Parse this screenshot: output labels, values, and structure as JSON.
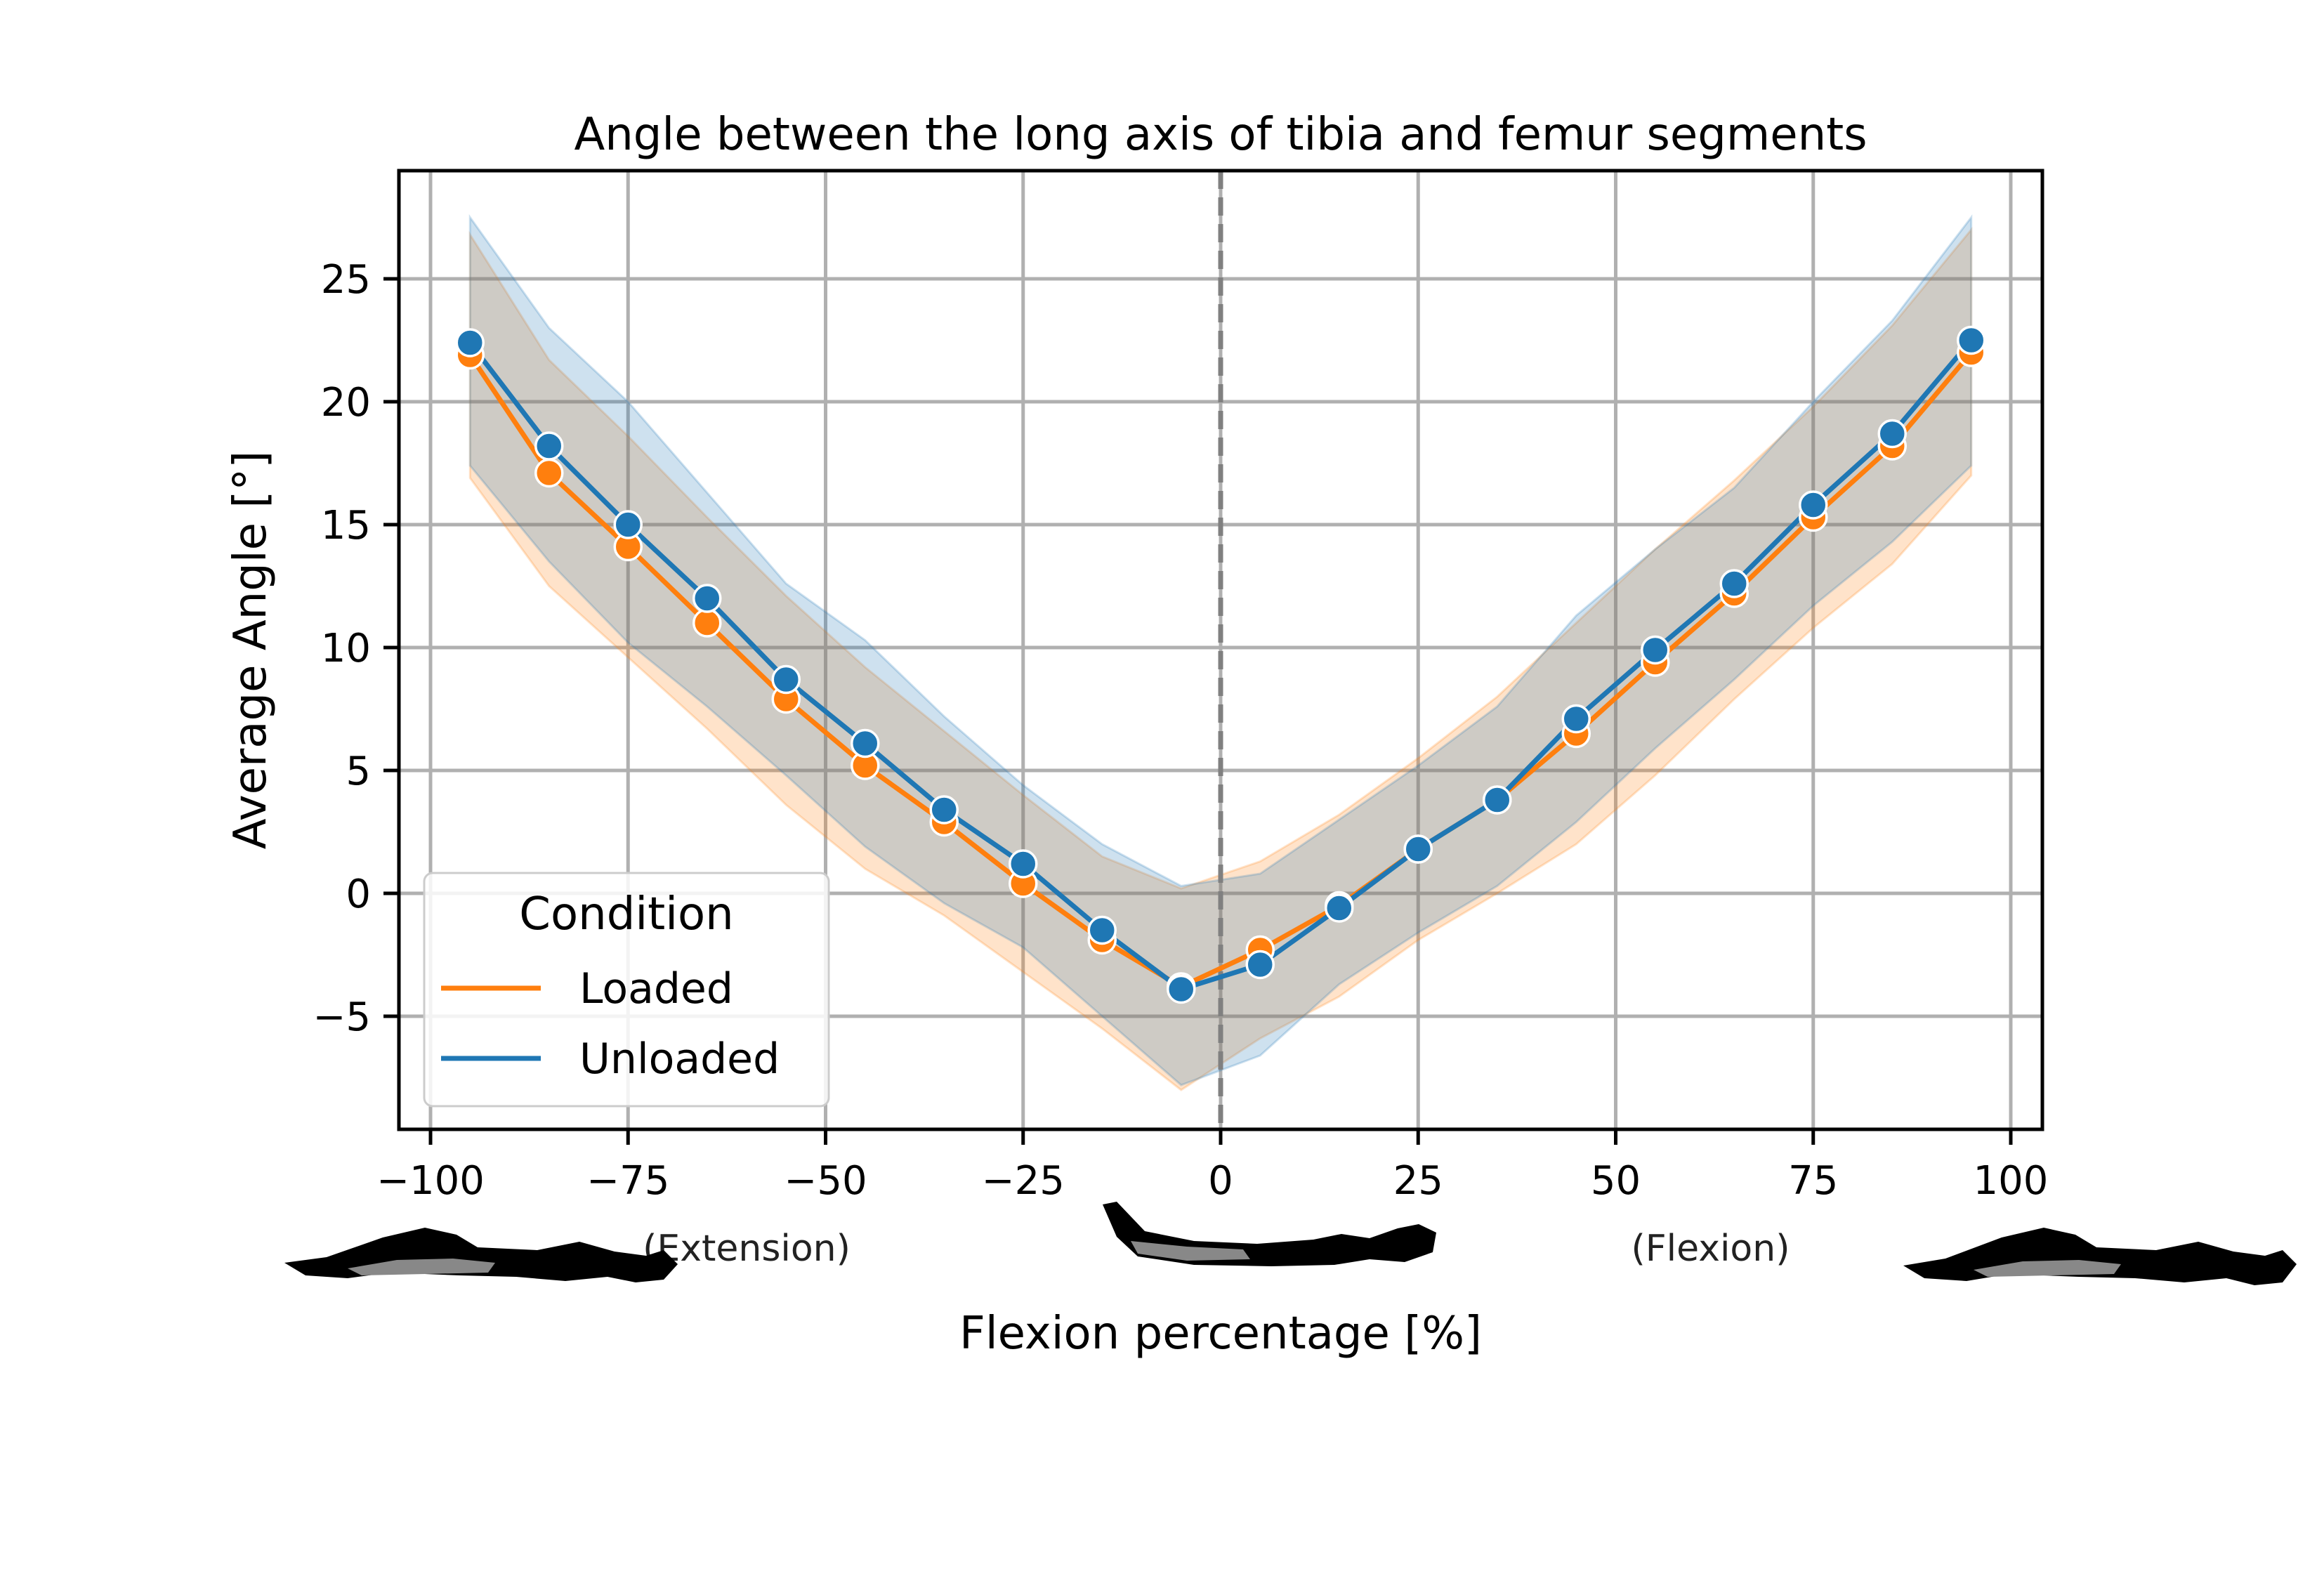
{
  "chart_data": {
    "type": "line",
    "title": "Angle between the long axis of tibia and femur segments",
    "xlabel": "Flexion percentage [%]",
    "ylabel": "Average Angle [°]",
    "xlim": [
      -104,
      104
    ],
    "ylim": [
      -9.6,
      29.4
    ],
    "xticks": [
      -100,
      -75,
      -50,
      -25,
      0,
      25,
      50,
      75,
      100
    ],
    "yticks": [
      -5,
      0,
      5,
      10,
      15,
      20,
      25
    ],
    "xtick_labels": [
      "−100",
      "−75",
      "−50",
      "−25",
      "0",
      "25",
      "50",
      "75",
      "100"
    ],
    "ytick_labels": [
      "−5",
      "0",
      "5",
      "10",
      "15",
      "20",
      "25"
    ],
    "grid": true,
    "vline_x": 0,
    "region_labels": {
      "extension": "(Extension)",
      "flexion": "(Flexion)"
    },
    "x": [
      -95,
      -85,
      -75,
      -65,
      -55,
      -45,
      -35,
      -25,
      -15,
      -5,
      5,
      15,
      25,
      35,
      45,
      55,
      65,
      75,
      85,
      95
    ],
    "legend": {
      "title": "Condition",
      "position": "lower-left"
    },
    "series": [
      {
        "name": "Loaded",
        "color": "#ff7f0e",
        "values": [
          21.9,
          17.1,
          14.1,
          11.0,
          7.9,
          5.2,
          2.9,
          0.4,
          -1.9,
          -3.8,
          -2.3,
          -0.5,
          1.8,
          3.8,
          6.5,
          9.4,
          12.2,
          15.3,
          18.2,
          22.0
        ],
        "ci_upper": [
          26.8,
          21.7,
          18.6,
          15.3,
          12.1,
          9.2,
          6.6,
          4.0,
          1.5,
          0.2,
          1.3,
          3.2,
          5.5,
          8.0,
          11.0,
          14.0,
          16.8,
          19.8,
          23.1,
          27.0
        ],
        "ci_lower": [
          16.9,
          12.5,
          9.6,
          6.7,
          3.6,
          1.0,
          -0.9,
          -3.2,
          -5.5,
          -8.0,
          -5.9,
          -4.2,
          -1.9,
          0.0,
          2.0,
          4.8,
          7.9,
          10.8,
          13.4,
          17.0
        ]
      },
      {
        "name": "Unloaded",
        "color": "#1f77b4",
        "values": [
          22.4,
          18.2,
          15.0,
          12.0,
          8.7,
          6.1,
          3.4,
          1.2,
          -1.5,
          -3.9,
          -2.9,
          -0.6,
          1.8,
          3.8,
          7.1,
          9.9,
          12.6,
          15.8,
          18.7,
          22.5
        ],
        "ci_upper": [
          27.5,
          23.0,
          20.0,
          16.3,
          12.6,
          10.3,
          7.2,
          4.4,
          2.0,
          0.3,
          0.8,
          3.0,
          5.2,
          7.6,
          11.3,
          14.0,
          16.5,
          20.0,
          23.3,
          27.5
        ],
        "ci_lower": [
          17.4,
          13.5,
          10.2,
          7.6,
          4.8,
          1.9,
          -0.4,
          -2.2,
          -5.0,
          -7.8,
          -6.6,
          -3.7,
          -1.6,
          0.3,
          2.9,
          5.9,
          8.7,
          11.7,
          14.3,
          17.4
        ]
      }
    ]
  }
}
